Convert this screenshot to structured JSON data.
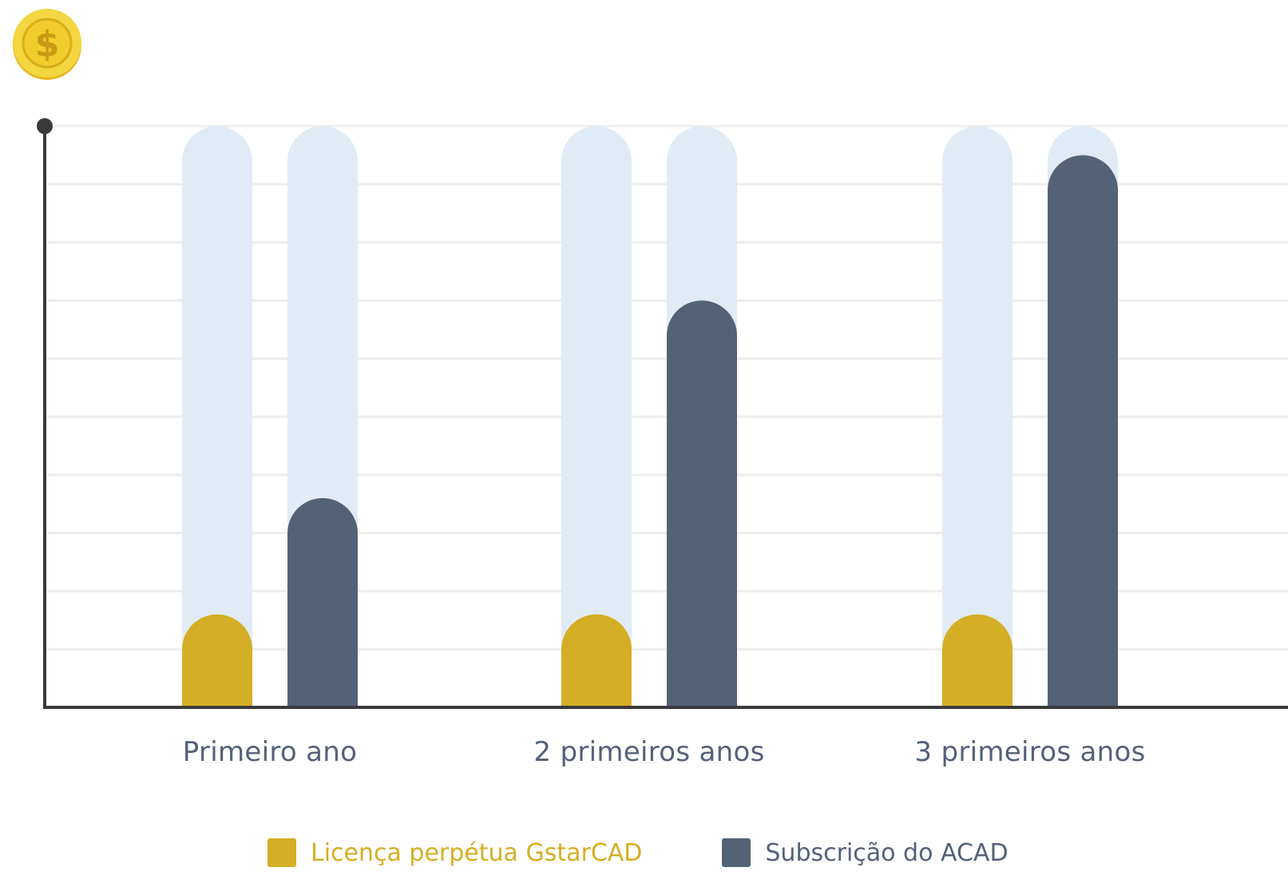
{
  "colors": {
    "gstarcad": "#d4ae24",
    "acad": "#546277",
    "track": "#e1ebf5",
    "grid": "#eeeeee",
    "axis": "#3a3a3a",
    "label": "#55617a"
  },
  "icon": "dollar-coin-icon",
  "chart_data": {
    "type": "bar",
    "title": "",
    "xlabel": "",
    "ylabel": "",
    "ylim": [
      0,
      10
    ],
    "grid": true,
    "legend_position": "bottom",
    "categories": [
      "Primeiro ano",
      "2 primeiros anos",
      "3 primeiros anos"
    ],
    "series": [
      {
        "name": "Licença perpétua GstarCAD",
        "values": [
          1.6,
          1.6,
          1.6
        ]
      },
      {
        "name": "Subscrição do ACAD",
        "values": [
          3.6,
          7.0,
          9.5
        ]
      }
    ]
  }
}
